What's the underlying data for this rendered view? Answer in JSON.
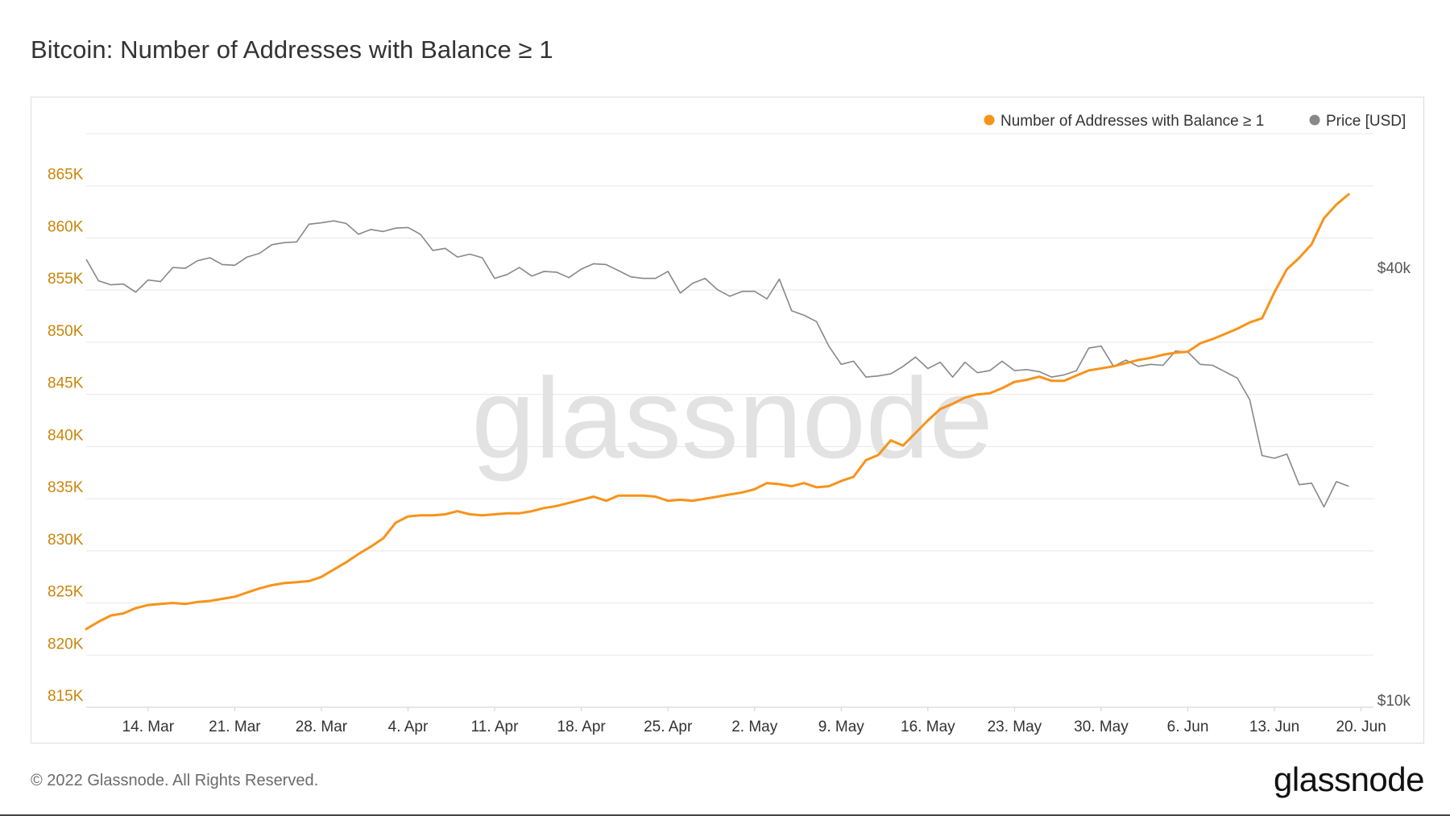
{
  "title": "Bitcoin: Number of Addresses with Balance ≥ 1",
  "watermark": "glassnode",
  "footer": {
    "copyright": "© 2022 Glassnode. All Rights Reserved.",
    "logo": "glassnode"
  },
  "colors": {
    "addresses": "#f7931a",
    "price": "#888888",
    "left_axis_text": "#c8860a",
    "grid": "#e8e8e8"
  },
  "chart_data": {
    "type": "line",
    "title": "Bitcoin: Number of Addresses with Balance ≥ 1",
    "legend_position": "top-right",
    "grid": true,
    "x_ticks": [
      "14. Mar",
      "21. Mar",
      "28. Mar",
      "4. Apr",
      "11. Apr",
      "18. Apr",
      "25. Apr",
      "2. May",
      "9. May",
      "16. May",
      "23. May",
      "30. May",
      "6. Jun",
      "13. Jun",
      "20. Jun"
    ],
    "y_left": {
      "ticks": [
        "815K",
        "820K",
        "825K",
        "830K",
        "835K",
        "840K",
        "845K",
        "850K",
        "855K",
        "860K",
        "865K"
      ],
      "ylim": [
        815000,
        870000
      ]
    },
    "y_right": {
      "ticks": [
        "$10k",
        "$40k"
      ],
      "scale": "log"
    },
    "x_range_days": [
      0,
      104
    ],
    "series": [
      {
        "name": "Number of Addresses with Balance ≥ 1",
        "axis": "left",
        "x_start": "9. Mar",
        "x_step_days": 1,
        "values": [
          822500,
          823200,
          823800,
          824000,
          824500,
          824800,
          824900,
          825000,
          824900,
          825100,
          825200,
          825400,
          825600,
          826000,
          826400,
          826700,
          826900,
          827000,
          827100,
          827500,
          828200,
          828900,
          829700,
          830400,
          831200,
          832700,
          833300,
          833400,
          833400,
          833500,
          833800,
          833500,
          833400,
          833500,
          833600,
          833600,
          833800,
          834100,
          834300,
          834600,
          834900,
          835200,
          834800,
          835300,
          835300,
          835300,
          835200,
          834800,
          834900,
          834800,
          835000,
          835200,
          835400,
          835600,
          835900,
          836500,
          836400,
          836200,
          836500,
          836100,
          836200,
          836700,
          837100,
          838700,
          839200,
          840600,
          840100,
          841300,
          842500,
          843600,
          844100,
          844700,
          845000,
          845100,
          845600,
          846200,
          846400,
          846700,
          846300,
          846300,
          846800,
          847300,
          847500,
          847700,
          848000,
          848300,
          848500,
          848800,
          849000,
          849100,
          849900,
          850300,
          850800,
          851300,
          851900,
          852300,
          854800,
          857000,
          858100,
          859400,
          861900,
          863200,
          864200
        ]
      },
      {
        "name": "Price [USD]",
        "axis": "right",
        "x_start": "9. Mar",
        "x_step_days": 1,
        "values": [
          42000,
          39200,
          38700,
          38800,
          37800,
          39300,
          39100,
          40900,
          40800,
          41800,
          42200,
          41300,
          41200,
          42300,
          42800,
          44000,
          44300,
          44400,
          47000,
          47200,
          47500,
          47100,
          45500,
          46200,
          45900,
          46400,
          46500,
          45500,
          43200,
          43500,
          42300,
          42700,
          42200,
          39500,
          40000,
          40900,
          39800,
          40400,
          40300,
          39600,
          40700,
          41400,
          41300,
          40500,
          39700,
          39500,
          39500,
          40400,
          37700,
          38900,
          39500,
          38100,
          37300,
          37900,
          37900,
          37000,
          39400,
          35600,
          35100,
          34400,
          31800,
          30000,
          30300,
          28800,
          28900,
          29100,
          29800,
          30700,
          29600,
          30200,
          28800,
          30200,
          29200,
          29400,
          30300,
          29400,
          29500,
          29300,
          28800,
          29000,
          29400,
          31600,
          31800,
          29800,
          30400,
          29800,
          30000,
          29900,
          31300,
          31200,
          30000,
          29900,
          29300,
          28700,
          26800,
          22400,
          22200,
          22500,
          20400,
          20500,
          19000,
          20600,
          20300
        ]
      }
    ]
  }
}
